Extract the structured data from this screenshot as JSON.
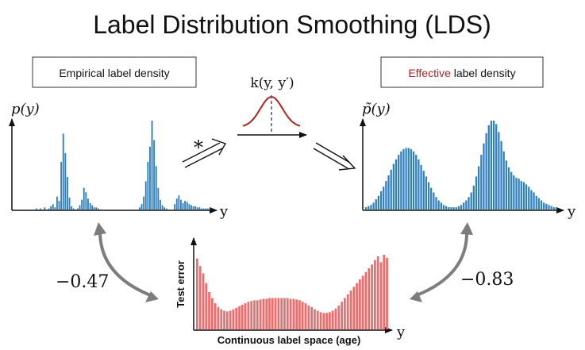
{
  "title": "Label Distribution Smoothing (LDS)",
  "colors": {
    "empirical": "#2f7fc1",
    "effective": "#2f7fc1",
    "test_error": "#f26b6b",
    "kernel": "#b22222",
    "effective_word": "#b22222",
    "arrows": "#7d7d7d"
  },
  "left_panel": {
    "box_label": "Empirical label density",
    "y_label": "p(y)",
    "x_label": "y",
    "chart_data": {
      "type": "bar",
      "values": [
        0,
        0,
        0,
        0,
        0,
        0,
        0,
        0,
        0,
        0,
        0.01,
        0,
        0.01,
        0,
        0.02,
        0,
        0.01,
        0.03,
        0.05,
        0.02,
        0.12,
        0.08,
        0.44,
        0.7,
        0.52,
        0.3,
        0.11,
        0.03,
        0.01,
        0,
        0.01,
        0.04,
        0.09,
        0.2,
        0.16,
        0.1,
        0.06,
        0.04,
        0.02,
        0.02,
        0.01,
        0,
        0,
        0,
        0,
        0,
        0,
        0,
        0,
        0,
        0,
        0,
        0,
        0,
        0,
        0,
        0,
        0,
        0,
        0,
        0.02,
        0.05,
        0.12,
        0.26,
        0.44,
        0.58,
        0.82,
        0.64,
        0.4,
        0.2,
        0.09,
        0.04,
        0.02,
        0.01,
        0,
        0,
        0,
        0.05,
        0.1,
        0.13,
        0.09,
        0.06,
        0.08,
        0.07,
        0.05,
        0.04,
        0.03,
        0.03,
        0.02,
        0.02,
        0.01,
        0.01,
        0.01,
        0.01,
        0.01
      ]
    }
  },
  "kernel": {
    "label": "k(y, y′)",
    "convolution_symbol": "*"
  },
  "right_panel": {
    "box_label_highlight": "Effective",
    "box_label_rest": " label density",
    "y_label": "p̃(y)",
    "x_label": "y",
    "chart_data": {
      "type": "bar",
      "values": [
        0.02,
        0.03,
        0.04,
        0.06,
        0.09,
        0.12,
        0.16,
        0.2,
        0.25,
        0.3,
        0.35,
        0.4,
        0.44,
        0.48,
        0.51,
        0.53,
        0.54,
        0.54,
        0.53,
        0.51,
        0.48,
        0.44,
        0.39,
        0.34,
        0.29,
        0.24,
        0.19,
        0.15,
        0.11,
        0.08,
        0.06,
        0.04,
        0.03,
        0.02,
        0.02,
        0.02,
        0.02,
        0.03,
        0.04,
        0.06,
        0.08,
        0.11,
        0.15,
        0.21,
        0.29,
        0.38,
        0.48,
        0.58,
        0.67,
        0.74,
        0.78,
        0.78,
        0.75,
        0.68,
        0.6,
        0.51,
        0.43,
        0.37,
        0.33,
        0.3,
        0.28,
        0.27,
        0.25,
        0.24,
        0.22,
        0.2,
        0.17,
        0.15,
        0.12,
        0.1,
        0.08,
        0.06,
        0.05,
        0.04,
        0.03,
        0.02,
        0.02
      ]
    }
  },
  "bottom_panel": {
    "y_label": "Test error",
    "x_label": "Continuous label space (age)",
    "axis_letter": "y",
    "chart_data": {
      "type": "bar",
      "values": [
        0.95,
        0.85,
        0.75,
        0.62,
        0.5,
        0.42,
        0.35,
        0.3,
        0.27,
        0.25,
        0.24,
        0.25,
        0.27,
        0.29,
        0.31,
        0.33,
        0.35,
        0.37,
        0.38,
        0.39,
        0.39,
        0.4,
        0.41,
        0.41,
        0.42,
        0.42,
        0.42,
        0.42,
        0.42,
        0.42,
        0.42,
        0.41,
        0.41,
        0.4,
        0.39,
        0.37,
        0.35,
        0.32,
        0.3,
        0.27,
        0.25,
        0.23,
        0.22,
        0.22,
        0.23,
        0.25,
        0.28,
        0.32,
        0.37,
        0.42,
        0.47,
        0.52,
        0.57,
        0.62,
        0.67,
        0.72,
        0.77,
        0.82,
        0.87,
        0.93,
        0.98,
        0.9,
        1.0,
        0.96
      ]
    }
  },
  "correlations": {
    "left": "−0.47",
    "right": "−0.83"
  }
}
